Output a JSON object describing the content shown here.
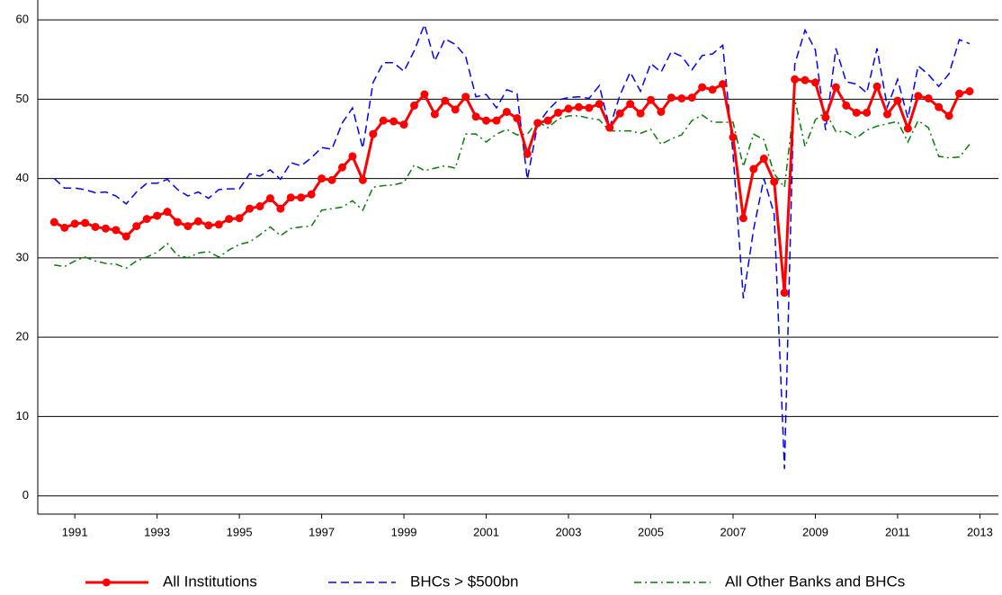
{
  "chart_data": {
    "type": "line",
    "x": [
      1991,
      1991.25,
      1991.5,
      1991.75,
      1992,
      1992.25,
      1992.5,
      1992.75,
      1993,
      1993.25,
      1993.5,
      1993.75,
      1994,
      1994.25,
      1994.5,
      1994.75,
      1995,
      1995.25,
      1995.5,
      1995.75,
      1996,
      1996.25,
      1996.5,
      1996.75,
      1997,
      1997.25,
      1997.5,
      1997.75,
      1998,
      1998.25,
      1998.5,
      1998.75,
      1999,
      1999.25,
      1999.5,
      1999.75,
      2000,
      2000.25,
      2000.5,
      2000.75,
      2001,
      2001.25,
      2001.5,
      2001.75,
      2002,
      2002.25,
      2002.5,
      2002.75,
      2003,
      2003.25,
      2003.5,
      2003.75,
      2004,
      2004.25,
      2004.5,
      2004.75,
      2005,
      2005.25,
      2005.5,
      2005.75,
      2006,
      2006.25,
      2006.5,
      2006.75,
      2007,
      2007.25,
      2007.5,
      2007.75,
      2008,
      2008.25,
      2008.5,
      2008.75,
      2009,
      2009.25,
      2009.5,
      2009.75,
      2010,
      2010.25,
      2010.5,
      2010.75,
      2011,
      2011.25,
      2011.5,
      2011.75,
      2012,
      2012.25,
      2012.5,
      2012.75,
      2013,
      2013.25
    ],
    "series": [
      {
        "name": "All Institutions",
        "color": "#ff0000",
        "style": "solid",
        "markers": true,
        "values": [
          34.5,
          33.8,
          34.3,
          34.4,
          33.9,
          33.7,
          33.5,
          32.7,
          34.0,
          34.9,
          35.3,
          35.8,
          34.5,
          34.0,
          34.6,
          34.1,
          34.2,
          34.9,
          35.0,
          36.2,
          36.5,
          37.5,
          36.2,
          37.6,
          37.6,
          38.0,
          40.0,
          39.8,
          41.4,
          42.8,
          39.8,
          45.6,
          47.3,
          47.2,
          46.8,
          49.2,
          50.6,
          48.1,
          49.8,
          48.7,
          50.3,
          47.8,
          47.3,
          47.3,
          48.4,
          47.6,
          43.1,
          47.0,
          47.3,
          48.3,
          48.8,
          49.0,
          48.9,
          49.4,
          46.4,
          48.2,
          49.4,
          48.2,
          49.9,
          48.4,
          50.2,
          50.1,
          50.2,
          51.5,
          51.2,
          51.9,
          45.2,
          35.0,
          41.2,
          42.5,
          39.6,
          25.6,
          52.5,
          52.4,
          52.1,
          47.7,
          51.5,
          49.2,
          48.3,
          48.3,
          51.6,
          48.1,
          49.8,
          46.3,
          50.4,
          50.1,
          49.0,
          47.9,
          50.7,
          51.0
        ]
      },
      {
        "name": "BHCs > $500bn",
        "color": "#0000ff",
        "style": "dashed",
        "markers": false,
        "values": [
          40.0,
          38.8,
          38.8,
          38.6,
          38.2,
          38.3,
          37.8,
          36.8,
          38.3,
          39.4,
          39.4,
          39.9,
          38.6,
          37.8,
          38.3,
          37.5,
          38.6,
          38.7,
          38.7,
          40.6,
          40.3,
          41.1,
          39.9,
          42.0,
          41.6,
          42.6,
          43.9,
          43.7,
          47.0,
          48.9,
          43.8,
          52.1,
          54.6,
          54.6,
          53.5,
          56.1,
          59.4,
          54.8,
          57.6,
          56.9,
          55.4,
          50.3,
          50.6,
          48.9,
          51.2,
          50.7,
          39.9,
          46.8,
          48.6,
          49.9,
          50.2,
          50.3,
          50.1,
          51.7,
          46.4,
          50.5,
          53.4,
          51.0,
          54.5,
          53.4,
          56.0,
          55.4,
          53.7,
          55.5,
          55.7,
          56.8,
          43.1,
          24.9,
          33.6,
          40.0,
          35.5,
          3.4,
          54.4,
          58.7,
          56.2,
          46.1,
          56.4,
          52.2,
          51.9,
          50.8,
          56.4,
          49.0,
          52.5,
          47.6,
          54.2,
          53.1,
          51.6,
          53.2,
          57.5,
          57.0
        ]
      },
      {
        "name": "All Other Banks and BHCs",
        "color": "#008000",
        "style": "dashdot",
        "markers": false,
        "values": [
          29.1,
          28.9,
          29.6,
          30.1,
          29.6,
          29.3,
          29.2,
          28.7,
          29.6,
          30.1,
          30.7,
          31.8,
          30.3,
          30.0,
          30.6,
          30.8,
          30.1,
          31.0,
          31.7,
          32.0,
          32.9,
          33.9,
          32.8,
          33.7,
          33.9,
          34.0,
          36.0,
          36.2,
          36.4,
          37.2,
          36.0,
          38.9,
          39.1,
          39.2,
          39.5,
          41.7,
          41.0,
          41.3,
          41.6,
          41.3,
          45.6,
          45.6,
          44.6,
          45.6,
          46.2,
          45.5,
          45.6,
          47.2,
          46.4,
          47.5,
          47.9,
          47.9,
          47.6,
          47.4,
          46.0,
          46.0,
          46.0,
          45.7,
          46.2,
          44.3,
          45.0,
          45.5,
          47.3,
          48.0,
          47.1,
          47.1,
          47.1,
          41.5,
          45.6,
          44.9,
          40.6,
          38.9,
          50.0,
          44.0,
          47.4,
          48.4,
          45.9,
          45.9,
          45.1,
          46.1,
          46.6,
          46.9,
          47.2,
          44.6,
          47.3,
          46.4,
          42.8,
          42.6,
          42.7,
          44.3
        ]
      }
    ],
    "xlim": [
      1990.6,
      2013.95
    ],
    "xticks": [
      {
        "value": 1991.5,
        "label": "1991"
      },
      {
        "value": 1993.5,
        "label": "1993"
      },
      {
        "value": 1995.5,
        "label": "1995"
      },
      {
        "value": 1997.5,
        "label": "1997"
      },
      {
        "value": 1999.5,
        "label": "1999"
      },
      {
        "value": 2001.5,
        "label": "2001"
      },
      {
        "value": 2003.5,
        "label": "2003"
      },
      {
        "value": 2005.5,
        "label": "2005"
      },
      {
        "value": 2007.5,
        "label": "2007"
      },
      {
        "value": 2009.5,
        "label": "2009"
      },
      {
        "value": 2011.5,
        "label": "2011"
      },
      {
        "value": 2013.5,
        "label": "2013"
      }
    ],
    "ylim": [
      -2.3,
      62.5
    ],
    "yticks": [
      0,
      10,
      20,
      30,
      40,
      50,
      60
    ],
    "grid": true,
    "legend": "bottom"
  }
}
